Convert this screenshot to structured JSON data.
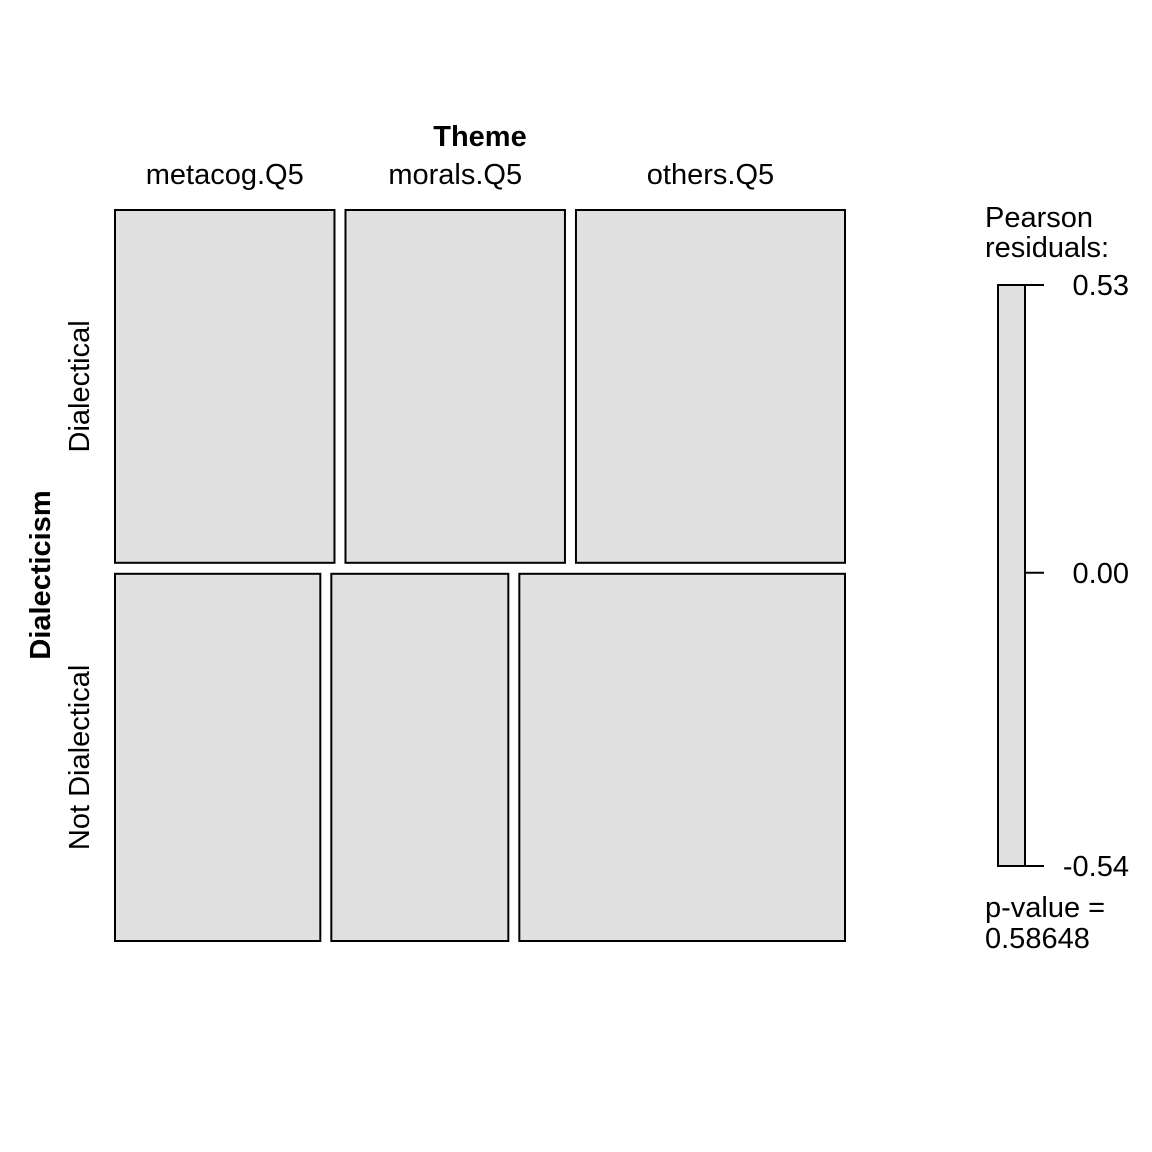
{
  "chart_data": {
    "type": "mosaic",
    "column_variable": "Theme",
    "row_variable": "Dialecticism",
    "columns": [
      "metacog.Q5",
      "morals.Q5",
      "others.Q5"
    ],
    "rows": [
      "Dialectical",
      "Not Dialectical"
    ],
    "row_proportions": [
      0.49,
      0.51
    ],
    "cells": [
      {
        "row": "Dialectical",
        "column": "metacog.Q5",
        "proportion_within_row": 0.31
      },
      {
        "row": "Dialectical",
        "column": "morals.Q5",
        "proportion_within_row": 0.31
      },
      {
        "row": "Dialectical",
        "column": "others.Q5",
        "proportion_within_row": 0.38
      },
      {
        "row": "Not Dialectical",
        "column": "metacog.Q5",
        "proportion_within_row": 0.29
      },
      {
        "row": "Not Dialectical",
        "column": "morals.Q5",
        "proportion_within_row": 0.25
      },
      {
        "row": "Not Dialectical",
        "column": "others.Q5",
        "proportion_within_row": 0.46
      }
    ],
    "cell_fill": "#e0e0e0",
    "cell_stroke": "#000000",
    "legend": {
      "title_line1": "Pearson",
      "title_line2": "residuals:",
      "min": -0.54,
      "max": 0.53,
      "ticks": [
        "0.53",
        "0.00",
        "-0.54"
      ],
      "pvalue_line1": "p-value =",
      "pvalue_line2": "0.58648",
      "placement": "right"
    }
  }
}
